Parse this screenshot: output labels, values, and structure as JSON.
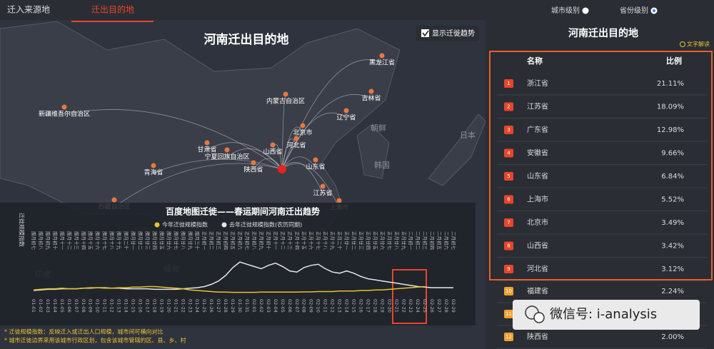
{
  "tabs": [
    "迁入来源地",
    "迁出目的地"
  ],
  "map": {
    "title": "河南迁出目的地",
    "toggle": "显示迁徙趋势",
    "labels": [
      "新疆维吾尔自治区",
      "青海省",
      "西藏自治区",
      "内蒙古自治区",
      "黑龙江省",
      "吉林省",
      "辽宁省",
      "北京市",
      "河北省",
      "山西省",
      "甘肃省",
      "宁夏回族自治区",
      "陕西省",
      "山东省",
      "江苏省",
      "上海市",
      "朝鲜",
      "韩国",
      "日本",
      "缅甸",
      "印度"
    ]
  },
  "trend_chart": {
    "type": "line",
    "title": "百度地图迁徙——春运期间河南迁出趋势",
    "y_label": "迁徙规模指数",
    "categories": [
      "01-01",
      "01-02",
      "01-03",
      "01-04",
      "01-05",
      "01-06",
      "01-07",
      "01-08",
      "01-09",
      "01-10",
      "01-11",
      "01-12",
      "01-13",
      "01-14",
      "01-15",
      "01-16",
      "01-17",
      "01-18",
      "01-19",
      "01-20",
      "01-21",
      "01-22",
      "01-23",
      "01-24",
      "01-25",
      "01-26",
      "01-27",
      "01-28",
      "01-29",
      "01-30",
      "01-31",
      "02-01",
      "02-02",
      "02-03",
      "02-04",
      "02-05",
      "02-06",
      "02-07",
      "02-08",
      "02-09",
      "02-10",
      "02-11",
      "02-12",
      "02-13",
      "02-14",
      "02-15",
      "02-16",
      "02-17",
      "02-18",
      "02-19",
      "02-20",
      "02-21",
      "02-22",
      "02-23",
      "02-24",
      "02-25",
      "02-26",
      "02-27",
      "02-28",
      "02-29"
    ],
    "lunar_labels": [
      "腊月初七",
      "腊月初八",
      "腊月初九",
      "腊月初十",
      "腊月十一",
      "腊月十二",
      "腊月十三",
      "腊月十四",
      "腊月十五",
      "腊月十六",
      "腊月十七",
      "腊月十八",
      "腊月十九",
      "腊月二十",
      "腊月廿一",
      "腊月廿二",
      "腊月廿三",
      "腊月廿四",
      "腊月廿五",
      "腊月廿六",
      "腊月廿七",
      "腊月廿八",
      "腊月廿九",
      "腊月三十",
      "正月初一",
      "正月初二",
      "正月初三",
      "正月初四",
      "正月初五",
      "正月初六",
      "正月初七",
      "正月初八",
      "正月初九",
      "正月初十",
      "正月十一",
      "正月十二",
      "正月十三",
      "正月十四",
      "正月十五",
      "正月十六",
      "正月十七",
      "正月十八",
      "正月十九",
      "正月二十",
      "正月廿一",
      "正月廿二",
      "正月廿三",
      "正月廿四",
      "正月廿五",
      "正月廿六",
      "正月廿七",
      "正月廿八",
      "正月廿九",
      "二月初一",
      "二月初二",
      "二月初三",
      "二月初四",
      "二月初五",
      "二月初六",
      "二月初七"
    ],
    "series": [
      {
        "name": "今年迁徙规模指数",
        "color": "#e8c22e",
        "values": [
          5,
          5.5,
          6,
          6,
          6.5,
          6,
          6,
          6.5,
          7,
          7,
          6.5,
          6.5,
          7,
          7,
          7.5,
          7.5,
          8,
          8,
          7.5,
          7,
          6.5,
          6,
          5,
          4.5,
          4,
          3.5,
          3,
          3,
          2.8,
          2.8,
          2.8,
          2.8,
          3,
          3,
          3,
          3,
          3,
          3,
          3.2,
          3.2,
          3.5,
          3.5,
          3.5,
          4,
          4,
          4,
          4.5,
          4.5,
          5,
          5,
          5.5,
          6,
          6.5,
          7,
          7.5,
          8,
          null,
          null,
          null,
          null
        ]
      },
      {
        "name": "去年迁徙规模指数(农历同期)",
        "color": "#e6e6e6",
        "values": [
          4.5,
          5,
          5.5,
          5.5,
          6,
          6,
          6,
          6.5,
          6.5,
          7,
          7,
          6.5,
          6.5,
          6,
          6,
          6,
          6,
          5.5,
          5.5,
          5.5,
          5.5,
          6,
          6.5,
          7,
          8,
          10,
          13,
          18,
          25,
          30,
          28,
          26,
          24,
          27,
          29,
          26,
          22,
          21,
          25,
          27,
          28,
          24,
          21,
          20,
          22,
          20,
          17,
          15,
          14,
          13,
          12,
          11,
          10,
          9,
          8,
          7.5,
          7,
          7,
          7,
          7
        ]
      }
    ],
    "ylim": [
      0,
      32
    ]
  },
  "notes": [
    "* 迁徙规模指数：反映迁入或迁出人口规模，城市间可横向对比",
    "* 城市迁徙边界采用该城市行政区划，包含该城市管辖的区、县、乡、村"
  ],
  "panel": {
    "options": [
      "城市级别",
      "省份级别"
    ],
    "title": "河南迁出目的地",
    "link": "文字解读",
    "columns": [
      "名称",
      "比例"
    ],
    "rows": [
      {
        "rank": 1,
        "name": "浙江省",
        "share": "21.11%"
      },
      {
        "rank": 2,
        "name": "江苏省",
        "share": "18.09%"
      },
      {
        "rank": 3,
        "name": "广东省",
        "share": "12.98%"
      },
      {
        "rank": 4,
        "name": "安徽省",
        "share": "9.66%"
      },
      {
        "rank": 5,
        "name": "山东省",
        "share": "6.84%"
      },
      {
        "rank": 6,
        "name": "上海市",
        "share": "5.52%"
      },
      {
        "rank": 7,
        "name": "北京市",
        "share": "3.49%"
      },
      {
        "rank": 8,
        "name": "山西省",
        "share": "3.42%"
      },
      {
        "rank": 9,
        "name": "河北省",
        "share": "3.12%"
      },
      {
        "rank": 10,
        "name": "福建省",
        "share": "2.24%"
      },
      {
        "rank": 11
      },
      {
        "rank": 12,
        "name": "陕西省",
        "share": "2.00%"
      }
    ]
  },
  "watermark": "微信号: i-analysis"
}
